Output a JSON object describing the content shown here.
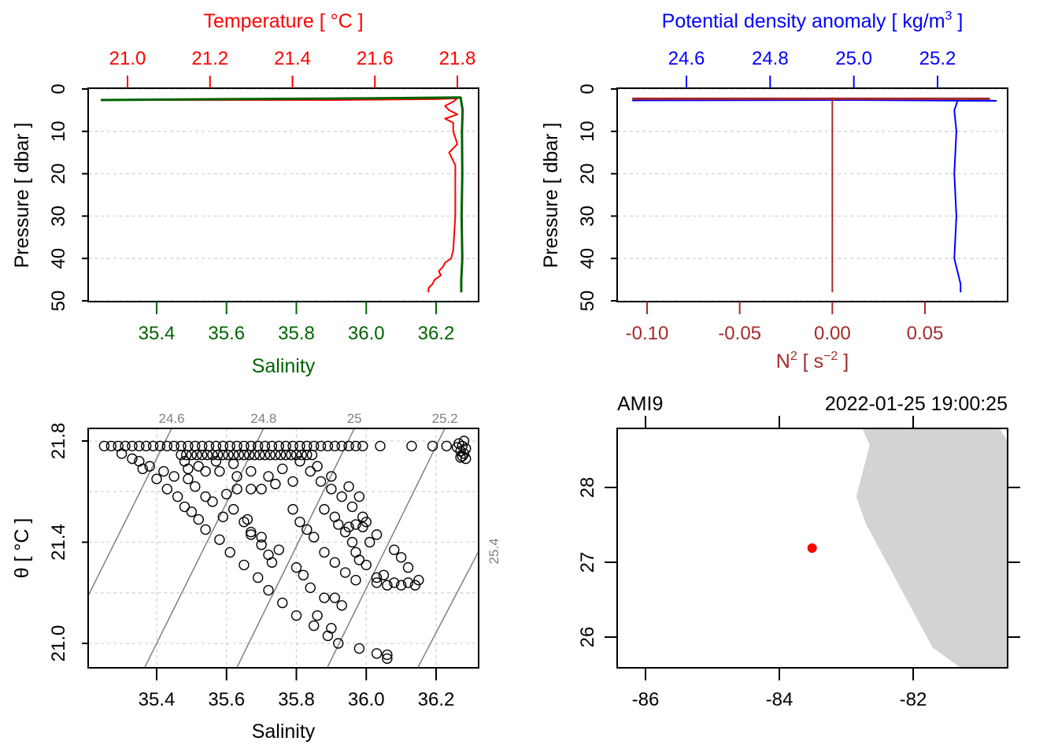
{
  "chart_data": [
    {
      "type": "line",
      "panel": "profile-temperature-salinity",
      "ylabel": "Pressure [ dbar ]",
      "ylim": [
        0,
        50
      ],
      "yticks": [
        "0",
        "10",
        "20",
        "30",
        "40",
        "50"
      ],
      "top_axis": {
        "label": "Temperature [ °C ]",
        "ticks": [
          "21.0",
          "21.2",
          "21.4",
          "21.6",
          "21.8"
        ],
        "color": "#ff0000"
      },
      "bottom_axis": {
        "label": "Salinity",
        "ticks": [
          "35.4",
          "35.6",
          "35.8",
          "36.0",
          "36.2"
        ],
        "color": "#006400"
      },
      "series": [
        {
          "name": "Temperature",
          "color": "#ff0000",
          "points": [
            [
              2.6,
              20.94
            ],
            [
              2.6,
              21.5
            ],
            [
              2.4,
              21.75
            ],
            [
              2.2,
              21.8
            ],
            [
              3,
              21.79
            ],
            [
              4,
              21.77
            ],
            [
              5,
              21.78
            ],
            [
              6,
              21.8
            ],
            [
              7,
              21.77
            ],
            [
              8,
              21.79
            ],
            [
              10,
              21.79
            ],
            [
              13,
              21.8
            ],
            [
              15,
              21.78
            ],
            [
              18,
              21.795
            ],
            [
              22,
              21.795
            ],
            [
              30,
              21.795
            ],
            [
              38,
              21.79
            ],
            [
              40,
              21.785
            ],
            [
              41,
              21.77
            ],
            [
              42,
              21.765
            ],
            [
              43,
              21.755
            ],
            [
              44,
              21.76
            ],
            [
              45,
              21.745
            ],
            [
              46,
              21.74
            ],
            [
              47,
              21.73
            ],
            [
              48,
              21.73
            ]
          ]
        },
        {
          "name": "Salinity",
          "color": "#006400",
          "points": [
            [
              2.6,
              35.24
            ],
            [
              2.4,
              35.6
            ],
            [
              2.2,
              36.0
            ],
            [
              2.0,
              36.27
            ],
            [
              5,
              36.276
            ],
            [
              10,
              36.274
            ],
            [
              20,
              36.275
            ],
            [
              30,
              36.273
            ],
            [
              40,
              36.275
            ],
            [
              45,
              36.272
            ],
            [
              48,
              36.272
            ]
          ]
        }
      ]
    },
    {
      "type": "line",
      "panel": "profile-density-n2",
      "ylabel": "Pressure [ dbar ]",
      "ylim": [
        0,
        50
      ],
      "yticks": [
        "0",
        "10",
        "20",
        "30",
        "40",
        "50"
      ],
      "top_axis": {
        "label_main": "Potential density anomaly [ kg/m",
        "label_sup": "3",
        "label_end": " ]",
        "ticks": [
          "24.6",
          "24.8",
          "25.0",
          "25.2"
        ],
        "color": "#0000ff"
      },
      "bottom_axis": {
        "label_main": "N",
        "label_sup1": "2",
        "label_mid": " [ s",
        "label_sup2": "−2",
        "label_end": " ]",
        "ticks": [
          "-0.10",
          "-0.05",
          "0.00",
          "0.05"
        ],
        "color": "#a52a2a"
      },
      "series": [
        {
          "name": "sigma",
          "color": "#0000ff",
          "points": [
            [
              2.7,
              24.47
            ],
            [
              2.6,
              25.0
            ],
            [
              2.8,
              25.34
            ],
            [
              2.2,
              25.25
            ],
            [
              5,
              25.24
            ],
            [
              10,
              25.245
            ],
            [
              20,
              25.24
            ],
            [
              30,
              25.245
            ],
            [
              40,
              25.24
            ],
            [
              44,
              25.25
            ],
            [
              46,
              25.255
            ],
            [
              48,
              25.255
            ]
          ]
        },
        {
          "name": "N2 surface",
          "color": "#a52a2a",
          "points": [
            [
              2.3,
              -0.108
            ],
            [
              2.3,
              0.085
            ]
          ]
        },
        {
          "name": "N2",
          "color": "#a52a2a",
          "points": [
            [
              2,
              0
            ],
            [
              48,
              0
            ]
          ]
        }
      ]
    },
    {
      "type": "scatter",
      "panel": "ts-diagram",
      "xlabel": "Salinity",
      "ylabel": "θ [ °C ]",
      "xticks": [
        "35.4",
        "35.6",
        "35.8",
        "36.0",
        "36.2"
      ],
      "yticks": [
        "21.0",
        "21.4",
        "21.8"
      ],
      "isopycnals": [
        {
          "label": "24.6",
          "S_bottom": 35.1,
          "S_top": 35.443
        },
        {
          "label": "24.8",
          "S_bottom": 35.364,
          "S_top": 35.706
        },
        {
          "label": "25",
          "S_bottom": 35.628,
          "S_top": 35.966
        },
        {
          "label": "25.2",
          "S_bottom": 35.887,
          "S_top": 36.225
        },
        {
          "label": "25.4",
          "S_bottom": 36.146,
          "S_top": 36.506
        }
      ],
      "surface_row": {
        "theta": 21.78,
        "salinity": [
          35.25,
          35.27,
          35.29,
          35.31,
          35.33,
          35.35,
          35.37,
          35.39,
          35.41,
          35.43,
          35.45,
          35.47,
          35.49,
          35.51,
          35.53,
          35.55,
          35.57,
          35.59,
          35.61,
          35.63,
          35.65,
          35.67,
          35.69,
          35.71,
          35.73,
          35.75,
          35.77,
          35.79,
          35.81,
          35.83,
          35.85,
          35.87,
          35.89,
          35.91,
          35.93,
          35.95,
          35.97,
          35.99,
          36.04,
          36.13,
          36.19,
          36.23
        ]
      },
      "second_row": {
        "theta": 21.745,
        "salinity": [
          35.47,
          35.485,
          35.5,
          35.515,
          35.53,
          35.545,
          35.56,
          35.575,
          35.59,
          35.605,
          35.62,
          35.635,
          35.65,
          35.665,
          35.68,
          35.695,
          35.71,
          35.725,
          35.74,
          35.755,
          35.77,
          35.785,
          35.8,
          35.815,
          35.83,
          35.845
        ]
      },
      "cluster": [
        [
          36.265,
          21.79
        ],
        [
          36.275,
          21.78
        ],
        [
          36.285,
          21.77
        ],
        [
          36.27,
          21.76
        ],
        [
          36.28,
          21.75
        ],
        [
          36.275,
          21.74
        ],
        [
          36.285,
          21.73
        ],
        [
          36.27,
          21.735
        ],
        [
          36.28,
          21.8
        ],
        [
          36.26,
          21.775
        ]
      ],
      "points": [
        [
          35.36,
          21.69
        ],
        [
          35.4,
          21.65
        ],
        [
          35.43,
          21.61
        ],
        [
          35.46,
          21.58
        ],
        [
          35.48,
          21.54
        ],
        [
          35.5,
          21.52
        ],
        [
          35.52,
          21.49
        ],
        [
          35.54,
          21.45
        ],
        [
          35.58,
          21.41
        ],
        [
          35.61,
          21.36
        ],
        [
          35.65,
          21.31
        ],
        [
          35.69,
          21.26
        ],
        [
          35.72,
          21.21
        ],
        [
          35.76,
          21.16
        ],
        [
          35.8,
          21.11
        ],
        [
          35.85,
          21.07
        ],
        [
          35.89,
          21.03
        ],
        [
          35.92,
          21.0
        ],
        [
          35.98,
          20.98
        ],
        [
          36.03,
          20.96
        ],
        [
          36.06,
          20.94
        ],
        [
          36.06,
          20.955
        ],
        [
          35.59,
          21.5
        ],
        [
          35.62,
          21.53
        ],
        [
          35.65,
          21.48
        ],
        [
          35.67,
          21.44
        ],
        [
          35.7,
          21.39
        ],
        [
          35.73,
          21.32
        ],
        [
          35.8,
          21.3
        ],
        [
          35.82,
          21.27
        ],
        [
          35.84,
          21.22
        ],
        [
          35.88,
          21.18
        ],
        [
          35.91,
          21.18
        ],
        [
          35.93,
          21.15
        ],
        [
          35.9,
          21.06
        ],
        [
          35.86,
          21.11
        ],
        [
          35.81,
          21.72
        ],
        [
          35.84,
          21.68
        ],
        [
          35.87,
          21.64
        ],
        [
          35.9,
          21.61
        ],
        [
          35.93,
          21.58
        ],
        [
          35.96,
          21.54
        ],
        [
          35.99,
          21.5
        ],
        [
          36.0,
          21.48
        ],
        [
          35.88,
          21.53
        ],
        [
          35.91,
          21.5
        ],
        [
          35.94,
          21.44
        ],
        [
          35.97,
          21.36
        ],
        [
          36.0,
          21.31
        ],
        [
          36.03,
          21.26
        ],
        [
          36.06,
          21.23
        ],
        [
          36.1,
          21.23
        ],
        [
          36.15,
          21.25
        ],
        [
          36.12,
          21.3
        ],
        [
          36.1,
          21.34
        ],
        [
          36.08,
          21.37
        ],
        [
          36.03,
          21.43
        ],
        [
          36.01,
          21.4
        ],
        [
          35.79,
          21.53
        ],
        [
          35.81,
          21.48
        ],
        [
          35.83,
          21.45
        ],
        [
          35.85,
          21.42
        ],
        [
          35.88,
          21.36
        ],
        [
          35.91,
          21.32
        ],
        [
          35.94,
          21.28
        ],
        [
          35.97,
          21.25
        ],
        [
          36.03,
          21.24
        ],
        [
          36.12,
          21.24
        ],
        [
          36.14,
          21.23
        ],
        [
          35.48,
          21.72
        ],
        [
          35.49,
          21.65
        ],
        [
          35.51,
          21.62
        ],
        [
          35.54,
          21.58
        ],
        [
          35.56,
          21.56
        ],
        [
          35.6,
          21.59
        ],
        [
          35.63,
          21.61
        ],
        [
          35.67,
          21.61
        ],
        [
          35.7,
          21.61
        ],
        [
          35.66,
          21.49
        ],
        [
          35.67,
          21.43
        ],
        [
          35.7,
          21.42
        ],
        [
          35.72,
          21.35
        ],
        [
          35.75,
          21.37
        ],
        [
          35.49,
          21.69
        ],
        [
          35.54,
          21.68
        ],
        [
          35.58,
          21.68
        ],
        [
          35.63,
          21.66
        ],
        [
          35.67,
          21.68
        ],
        [
          35.72,
          21.66
        ],
        [
          35.76,
          21.69
        ],
        [
          35.79,
          21.64
        ],
        [
          35.74,
          21.63
        ],
        [
          35.3,
          21.75
        ],
        [
          35.33,
          21.73
        ],
        [
          35.35,
          21.72
        ],
        [
          35.38,
          21.7
        ],
        [
          35.42,
          21.68
        ],
        [
          35.45,
          21.66
        ],
        [
          35.52,
          21.7
        ],
        [
          35.57,
          21.72
        ],
        [
          35.62,
          21.71
        ],
        [
          35.86,
          21.7
        ],
        [
          35.9,
          21.66
        ],
        [
          35.95,
          21.62
        ],
        [
          35.98,
          21.58
        ],
        [
          35.92,
          21.47
        ],
        [
          35.95,
          21.46
        ],
        [
          35.97,
          21.47
        ],
        [
          35.99,
          21.46
        ],
        [
          35.96,
          21.4
        ],
        [
          35.98,
          21.33
        ],
        [
          36.05,
          21.27
        ],
        [
          36.08,
          21.24
        ]
      ]
    },
    {
      "type": "scatter",
      "panel": "station-map",
      "station": "AMI9",
      "datetime": "2022-01-25 19:00:25",
      "xticks": [
        "-86",
        "-84",
        "-82"
      ],
      "yticks": [
        "26",
        "27",
        "28"
      ],
      "xlim": [
        -86.42,
        -80.59
      ],
      "ylim": [
        25.59,
        28.79
      ],
      "station_position": {
        "lon": -83.51,
        "lat": 27.19,
        "color": "#ff0000"
      },
      "land_color": "#d3d3d3",
      "coastline": [
        [
          -82.76,
          28.79
        ],
        [
          -82.65,
          28.57
        ],
        [
          -82.85,
          27.88
        ],
        [
          -82.71,
          27.52
        ],
        [
          -81.71,
          25.86
        ],
        [
          -81.29,
          25.59
        ],
        [
          -80.59,
          25.59
        ],
        [
          -80.59,
          28.62
        ],
        [
          -80.71,
          28.79
        ]
      ]
    }
  ]
}
